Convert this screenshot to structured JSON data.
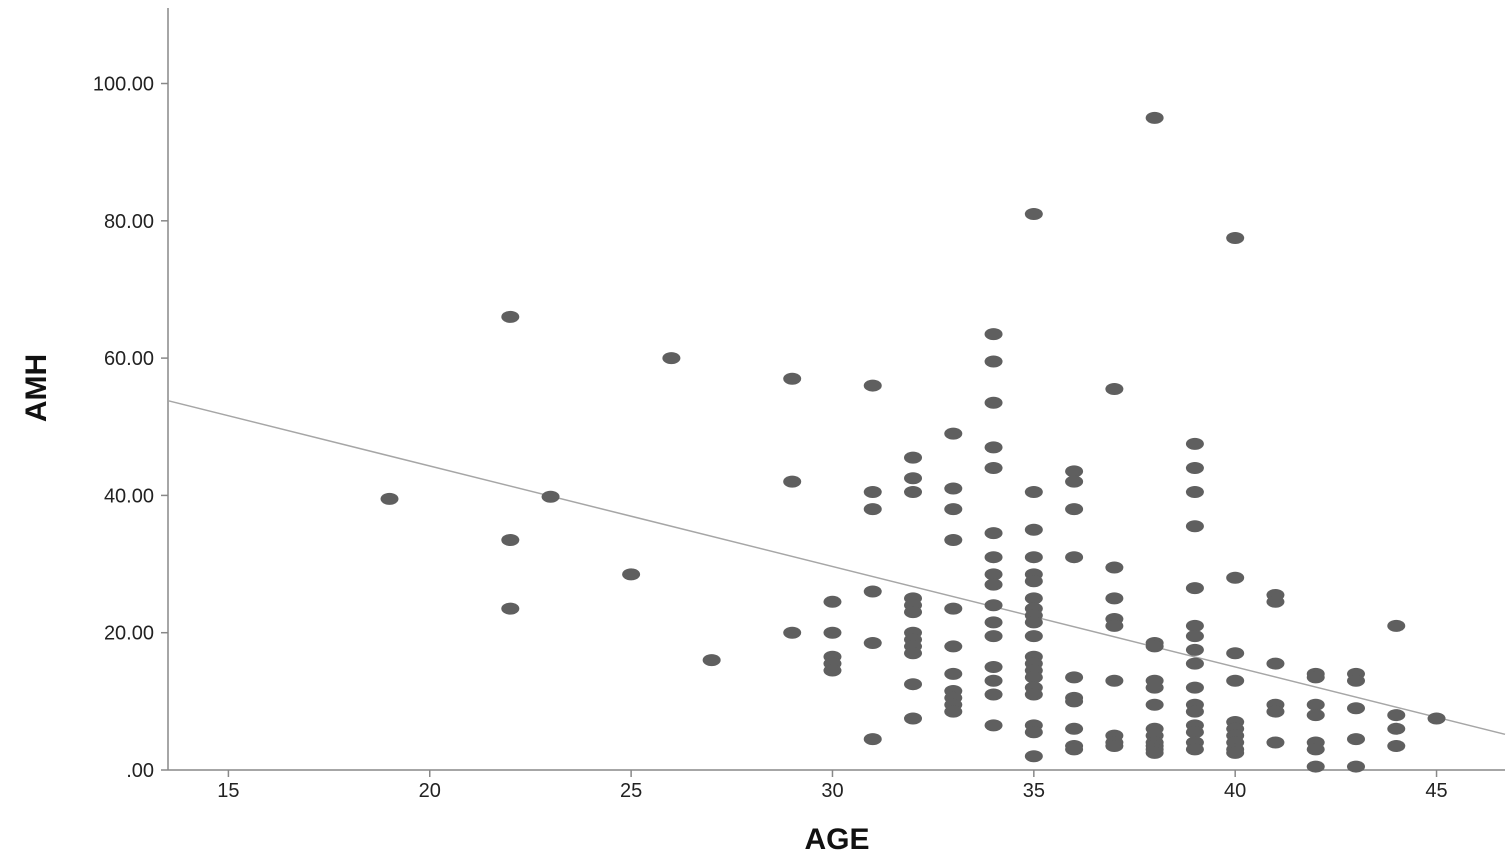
{
  "chart_data": {
    "type": "scatter",
    "title": "",
    "xlabel": "AGE",
    "ylabel": "AMH",
    "xlim": [
      13.5,
      46.7
    ],
    "ylim": [
      0,
      111
    ],
    "xticks": [
      15,
      20,
      25,
      30,
      35,
      40,
      45
    ],
    "xtick_labels": [
      "15",
      "20",
      "25",
      "30",
      "35",
      "40",
      "45"
    ],
    "yticks": [
      0,
      20,
      40,
      60,
      80,
      100
    ],
    "ytick_labels": [
      ".00",
      "20.00",
      "40.00",
      "60.00",
      "80.00",
      "100.00"
    ],
    "grid": false,
    "marker_color": "#5f5f5f",
    "line_color": "#a6a6a6",
    "axis_color": "#888888",
    "fit_line": {
      "x": [
        13.5,
        46.7
      ],
      "y": [
        53.8,
        5.2
      ]
    },
    "points": [
      [
        19,
        39.5
      ],
      [
        22,
        66
      ],
      [
        22,
        33.5
      ],
      [
        22,
        23.5
      ],
      [
        23,
        39.8
      ],
      [
        25,
        28.5
      ],
      [
        26,
        60
      ],
      [
        27,
        16
      ],
      [
        29,
        57
      ],
      [
        29,
        42
      ],
      [
        29,
        20
      ],
      [
        30,
        24.5
      ],
      [
        30,
        20
      ],
      [
        30,
        16.5
      ],
      [
        30,
        15.5
      ],
      [
        30,
        14.5
      ],
      [
        31,
        56
      ],
      [
        31,
        40.5
      ],
      [
        31,
        38
      ],
      [
        31,
        26
      ],
      [
        31,
        18.5
      ],
      [
        31,
        4.5
      ],
      [
        32,
        45.5
      ],
      [
        32,
        42.5
      ],
      [
        32,
        40.5
      ],
      [
        32,
        25
      ],
      [
        32,
        24
      ],
      [
        32,
        23
      ],
      [
        32,
        20
      ],
      [
        32,
        19
      ],
      [
        32,
        18
      ],
      [
        32,
        17
      ],
      [
        32,
        12.5
      ],
      [
        32,
        7.5
      ],
      [
        33,
        49
      ],
      [
        33,
        41
      ],
      [
        33,
        38
      ],
      [
        33,
        33.5
      ],
      [
        33,
        23.5
      ],
      [
        33,
        18
      ],
      [
        33,
        14
      ],
      [
        33,
        11.5
      ],
      [
        33,
        10.5
      ],
      [
        33,
        9.5
      ],
      [
        33,
        8.5
      ],
      [
        34,
        63.5
      ],
      [
        34,
        59.5
      ],
      [
        34,
        53.5
      ],
      [
        34,
        47
      ],
      [
        34,
        44
      ],
      [
        34,
        34.5
      ],
      [
        34,
        31
      ],
      [
        34,
        28.5
      ],
      [
        34,
        27
      ],
      [
        34,
        24
      ],
      [
        34,
        21.5
      ],
      [
        34,
        19.5
      ],
      [
        34,
        15
      ],
      [
        34,
        13
      ],
      [
        34,
        11
      ],
      [
        34,
        6.5
      ],
      [
        35,
        81
      ],
      [
        35,
        40.5
      ],
      [
        35,
        35
      ],
      [
        35,
        31
      ],
      [
        35,
        28.5
      ],
      [
        35,
        27.5
      ],
      [
        35,
        25
      ],
      [
        35,
        23.5
      ],
      [
        35,
        22.5
      ],
      [
        35,
        21.5
      ],
      [
        35,
        19.5
      ],
      [
        35,
        16.5
      ],
      [
        35,
        15.5
      ],
      [
        35,
        14.5
      ],
      [
        35,
        13.5
      ],
      [
        35,
        12
      ],
      [
        35,
        11
      ],
      [
        35,
        6.5
      ],
      [
        35,
        5.5
      ],
      [
        35,
        2
      ],
      [
        36,
        43.5
      ],
      [
        36,
        42
      ],
      [
        36,
        38
      ],
      [
        36,
        31
      ],
      [
        36,
        13.5
      ],
      [
        36,
        10.5
      ],
      [
        36,
        10
      ],
      [
        36,
        6
      ],
      [
        36,
        3.5
      ],
      [
        36,
        3
      ],
      [
        37,
        55.5
      ],
      [
        37,
        29.5
      ],
      [
        37,
        25
      ],
      [
        37,
        22
      ],
      [
        37,
        21
      ],
      [
        37,
        13
      ],
      [
        37,
        5
      ],
      [
        37,
        4
      ],
      [
        37,
        3.5
      ],
      [
        38,
        95
      ],
      [
        38,
        18.5
      ],
      [
        38,
        18
      ],
      [
        38,
        13
      ],
      [
        38,
        12
      ],
      [
        38,
        9.5
      ],
      [
        38,
        6
      ],
      [
        38,
        5
      ],
      [
        38,
        4
      ],
      [
        38,
        3.5
      ],
      [
        38,
        3
      ],
      [
        38,
        2.5
      ],
      [
        39,
        47.5
      ],
      [
        39,
        44
      ],
      [
        39,
        40.5
      ],
      [
        39,
        35.5
      ],
      [
        39,
        26.5
      ],
      [
        39,
        21
      ],
      [
        39,
        19.5
      ],
      [
        39,
        17.5
      ],
      [
        39,
        15.5
      ],
      [
        39,
        12
      ],
      [
        39,
        9.5
      ],
      [
        39,
        8.5
      ],
      [
        39,
        6.5
      ],
      [
        39,
        5.5
      ],
      [
        39,
        4
      ],
      [
        39,
        3
      ],
      [
        40,
        77.5
      ],
      [
        40,
        28
      ],
      [
        40,
        17
      ],
      [
        40,
        13
      ],
      [
        40,
        7
      ],
      [
        40,
        6
      ],
      [
        40,
        5
      ],
      [
        40,
        4
      ],
      [
        40,
        3
      ],
      [
        40,
        2.5
      ],
      [
        41,
        25.5
      ],
      [
        41,
        24.5
      ],
      [
        41,
        15.5
      ],
      [
        41,
        9.5
      ],
      [
        41,
        8.5
      ],
      [
        41,
        4
      ],
      [
        42,
        14
      ],
      [
        42,
        13.5
      ],
      [
        42,
        9.5
      ],
      [
        42,
        8
      ],
      [
        42,
        4
      ],
      [
        42,
        3
      ],
      [
        42,
        0.5
      ],
      [
        43,
        14
      ],
      [
        43,
        13
      ],
      [
        43,
        9
      ],
      [
        43,
        4.5
      ],
      [
        43,
        0.5
      ],
      [
        44,
        21
      ],
      [
        44,
        8
      ],
      [
        44,
        6
      ],
      [
        44,
        3.5
      ],
      [
        45,
        7.5
      ]
    ]
  }
}
